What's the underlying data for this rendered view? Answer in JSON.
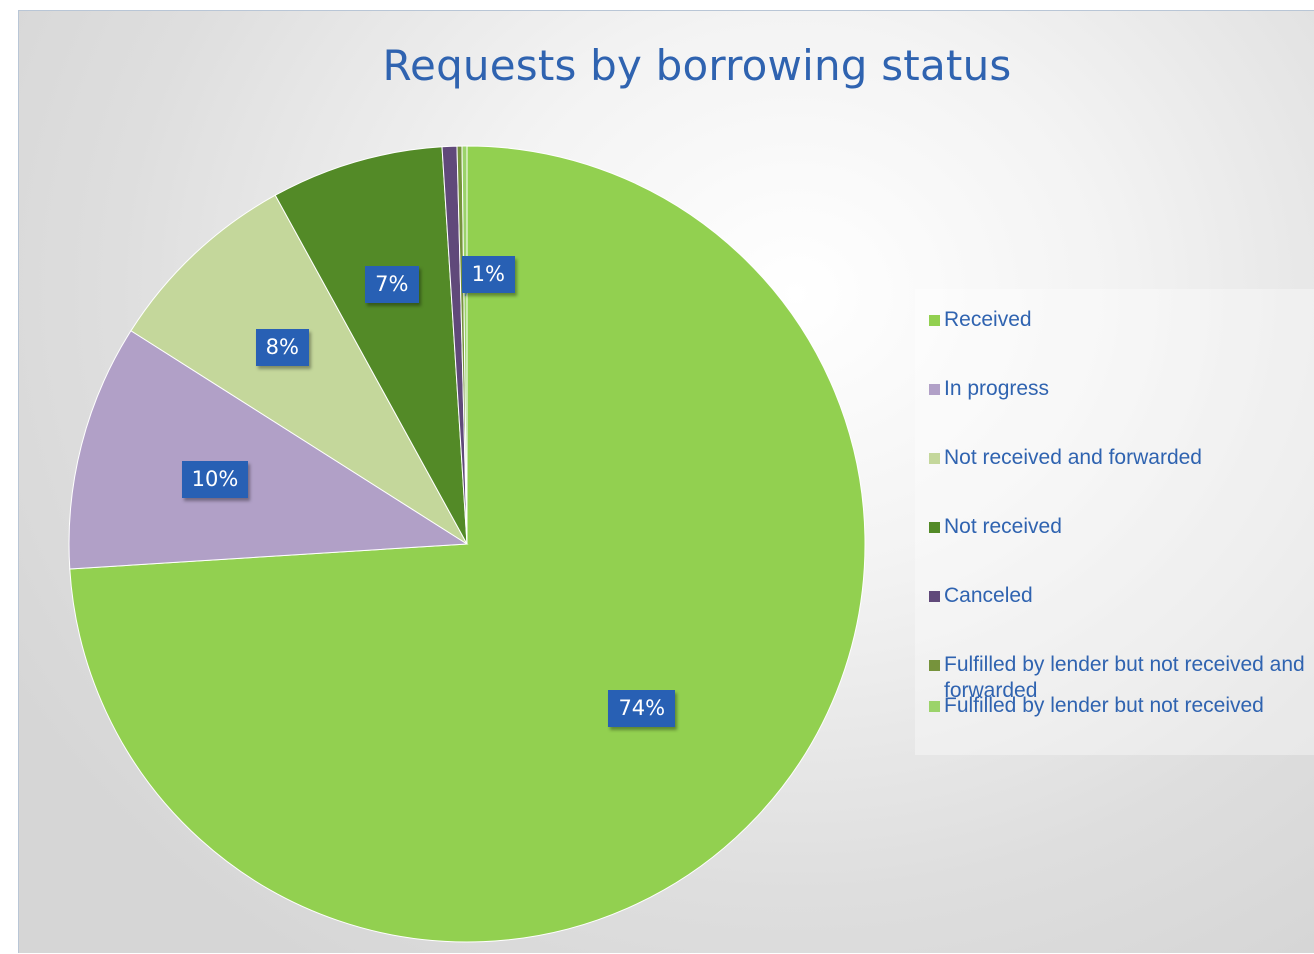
{
  "chart_data": {
    "type": "pie",
    "title": "Requests by borrowing status",
    "series": [
      {
        "name": "Received",
        "value": 74,
        "label": "74%",
        "color": "#92d050"
      },
      {
        "name": "In progress",
        "value": 10,
        "label": "10%",
        "color": "#b1a0c7"
      },
      {
        "name": "Not received and forwarded",
        "value": 8,
        "label": "8%",
        "color": "#c4d79b"
      },
      {
        "name": "Not received",
        "value": 7,
        "label": "7%",
        "color": "#538a27"
      },
      {
        "name": "Canceled",
        "value": 0.6,
        "label": "",
        "color": "#60497a"
      },
      {
        "name": "Fulfilled by lender but not received and forwarded",
        "value": 0.2,
        "label": "",
        "color": "#76933c"
      },
      {
        "name": "Fulfilled by lender but not received",
        "value": 0.2,
        "label": "1%",
        "color": "#9bd36a"
      }
    ],
    "legend_position": "right"
  }
}
